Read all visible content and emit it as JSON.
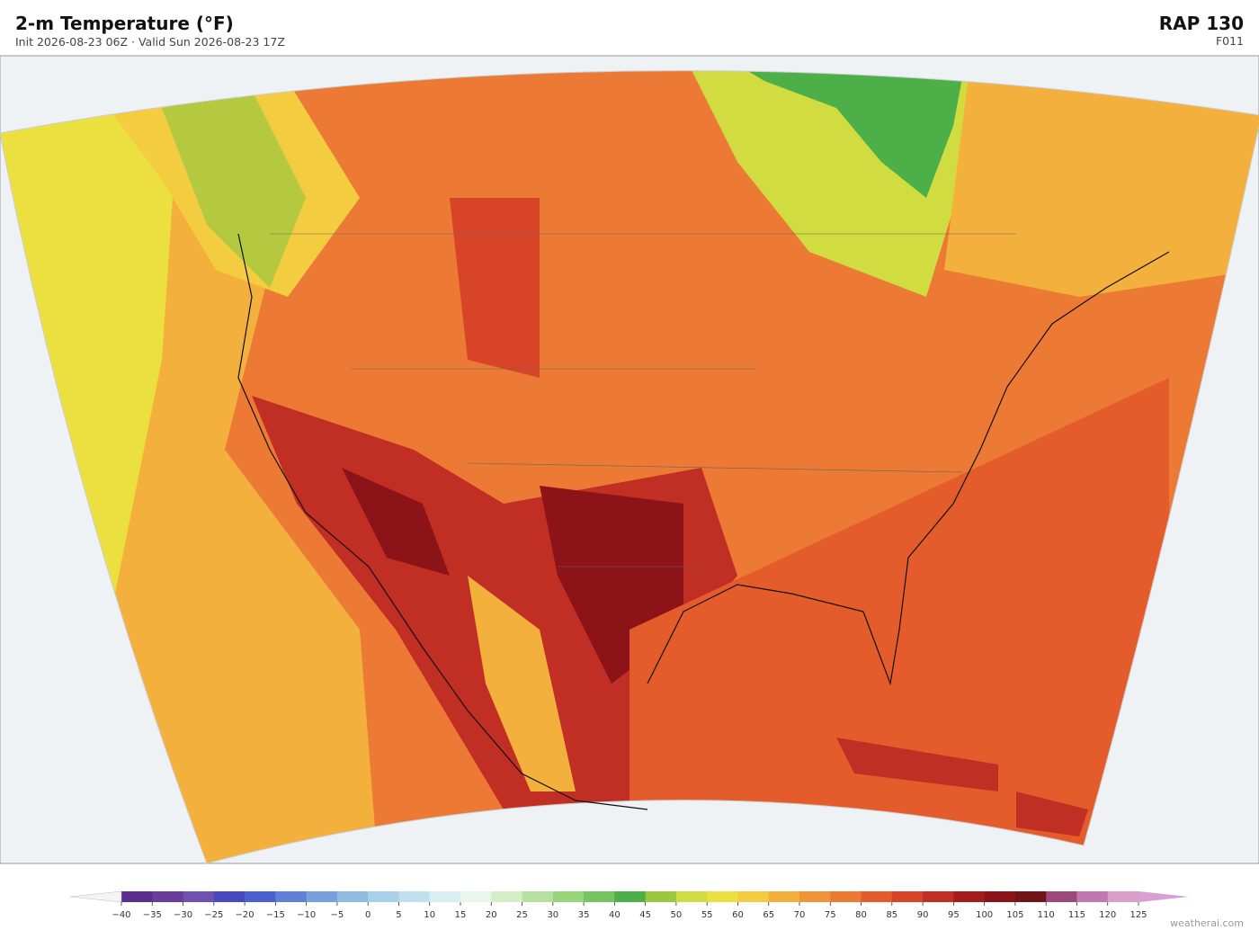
{
  "header": {
    "title": "2-m Temperature  (°F)",
    "subtitle": "Init 2026-08-23 06Z  ·  Valid Sun 2026-08-23 17Z",
    "model": "RAP  130",
    "forecast_hour": "F011"
  },
  "colorbar": {
    "ticks": [
      {
        "value": -40,
        "label": "−40"
      },
      {
        "value": -35,
        "label": "−35"
      },
      {
        "value": -30,
        "label": "−30"
      },
      {
        "value": -25,
        "label": "−25"
      },
      {
        "value": -20,
        "label": "−20"
      },
      {
        "value": -15,
        "label": "−15"
      },
      {
        "value": -10,
        "label": "−10"
      },
      {
        "value": -5,
        "label": "−5"
      },
      0,
      5,
      10,
      15,
      20,
      25,
      30,
      35,
      40,
      45,
      50,
      55,
      60,
      65,
      70,
      75,
      80,
      85,
      90,
      95,
      100,
      105,
      110,
      115,
      120,
      125
    ],
    "colors": [
      "#5b2d8e",
      "#6a3d9a",
      "#7050b0",
      "#4848c0",
      "#4a60d0",
      "#6080d8",
      "#78a0dc",
      "#90bce0",
      "#a8d0e8",
      "#c0e0f0",
      "#d8eef4",
      "#e8f6ec",
      "#d4eec8",
      "#b8e0a0",
      "#98d478",
      "#74c460",
      "#4caf48",
      "#98c840",
      "#d0dc40",
      "#ece040",
      "#f4cc40",
      "#f4b03c",
      "#f09438",
      "#ec7a34",
      "#e45c2c",
      "#d84428",
      "#c02e24",
      "#a41c1c",
      "#8c1418",
      "#701418",
      "#9c4878",
      "#c078b0",
      "#d8a0c8"
    ],
    "under_color": "#f4f4f4",
    "over_color": "#d8a0d0"
  },
  "credit": "weatherai.com"
}
